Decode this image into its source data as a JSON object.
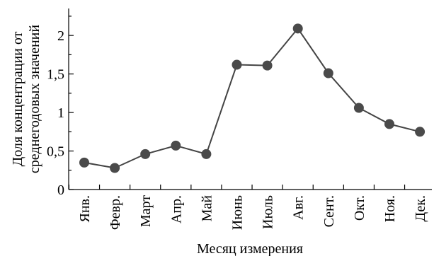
{
  "chart_data": {
    "type": "line",
    "title": "",
    "xlabel": "Месяц измерения",
    "ylabel_line1": "Доля концентрации от",
    "ylabel_line2": "среднегодовых значений",
    "categories": [
      "Янв.",
      "Февр.",
      "Март",
      "Апр.",
      "Май",
      "Июнь",
      "Июль",
      "Авг.",
      "Сент.",
      "Окт.",
      "Ноя.",
      "Дек."
    ],
    "series": [
      {
        "values": [
          0.35,
          0.28,
          0.46,
          0.57,
          0.46,
          1.62,
          1.61,
          2.09,
          1.51,
          1.06,
          0.85,
          0.75
        ]
      }
    ],
    "ylim": [
      0,
      2.35
    ],
    "yticks": [
      0,
      0.5,
      1,
      1.5,
      2
    ],
    "ytick_labels": [
      "0",
      "0,5",
      "1",
      "1,5",
      "2"
    ],
    "grid": false,
    "legend": "none",
    "colors": {
      "line": "#444444",
      "marker": "#4a4a4a"
    }
  }
}
